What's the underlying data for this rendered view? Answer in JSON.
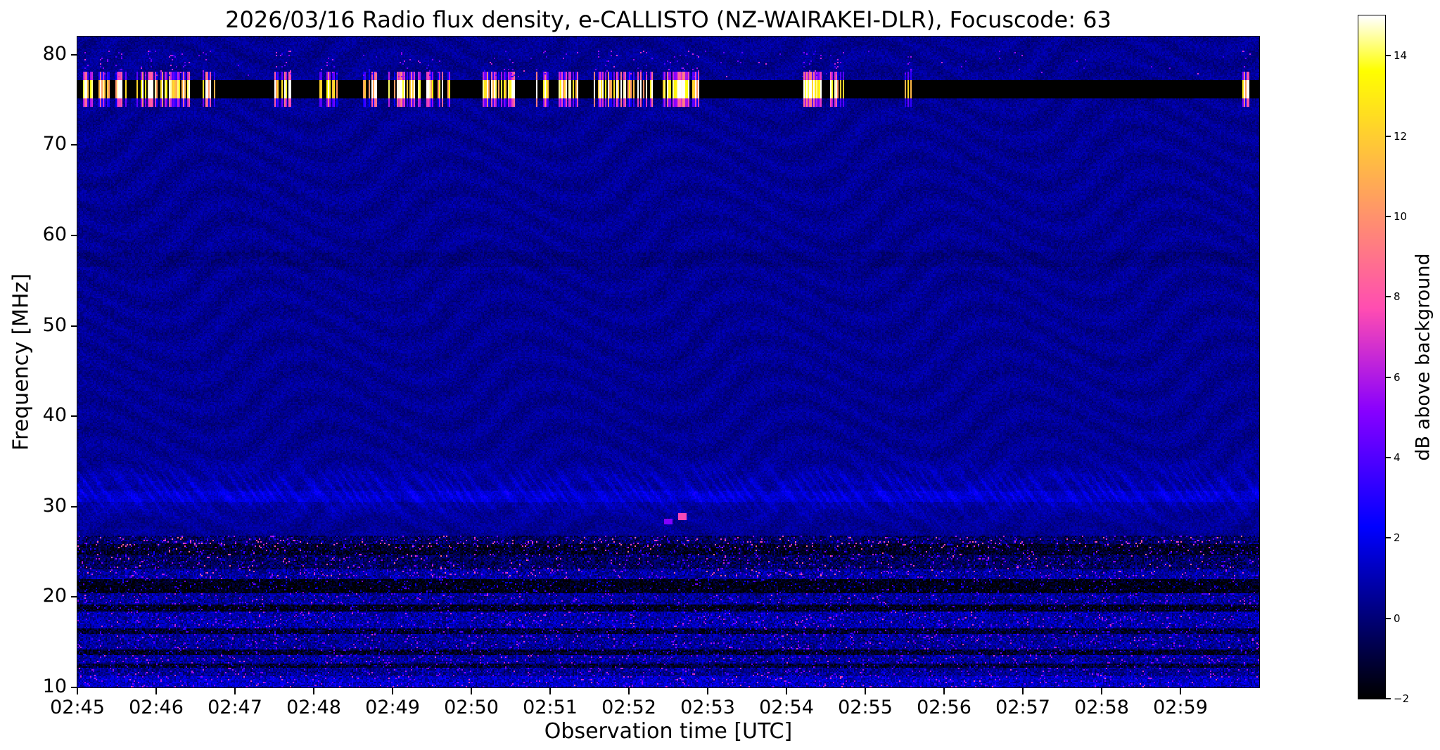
{
  "chart_data": {
    "type": "heatmap",
    "title": "2026/03/16  Radio flux density, e-CALLISTO (NZ-WAIRAKEI-DLR), Focuscode: 63",
    "xlabel": "Observation time [UTC]",
    "ylabel": "Frequency [MHz]",
    "colorbar_label": "dB above background",
    "colormap": "gnuplot2",
    "grid": false,
    "x_ticks": [
      "02:45",
      "02:46",
      "02:47",
      "02:48",
      "02:49",
      "02:50",
      "02:51",
      "02:52",
      "02:53",
      "02:54",
      "02:55",
      "02:56",
      "02:57",
      "02:58",
      "02:59"
    ],
    "x_range_minutes": [
      0,
      15
    ],
    "y_ticks": [
      10,
      20,
      30,
      40,
      50,
      60,
      70,
      80
    ],
    "ylim": [
      10,
      82
    ],
    "colorbar_ticks": [
      {
        "value": -2,
        "label": "−2"
      },
      {
        "value": 0,
        "label": "0"
      },
      {
        "value": 2,
        "label": "2"
      },
      {
        "value": 4,
        "label": "4"
      },
      {
        "value": 6,
        "label": "6"
      },
      {
        "value": 8,
        "label": "8"
      },
      {
        "value": 10,
        "label": "10"
      },
      {
        "value": 12,
        "label": "12"
      },
      {
        "value": 14,
        "label": "14"
      }
    ],
    "value_range_db": [
      -2,
      15
    ],
    "background_level_db": 0.45,
    "features": {
      "rfi_band": {
        "freq_range": [
          75.15,
          77.25
        ],
        "base_db": -2,
        "burst_db": [
          10,
          17.5
        ],
        "burst_probability": 0.65,
        "burst_clusters_min": [
          [
            0.07,
            0.2
          ],
          [
            0.25,
            0.62
          ],
          [
            0.72,
            1.02
          ],
          [
            1.05,
            1.45
          ],
          [
            1.55,
            1.75
          ],
          [
            2.5,
            2.72
          ],
          [
            3.05,
            3.35
          ],
          [
            3.62,
            3.8
          ],
          [
            3.95,
            4.35
          ],
          [
            4.42,
            4.75
          ],
          [
            5.15,
            5.55
          ],
          [
            5.83,
            6.0
          ],
          [
            6.1,
            6.35
          ],
          [
            6.55,
            7.3
          ],
          [
            7.35,
            7.9
          ],
          [
            9.2,
            9.45
          ],
          [
            9.55,
            9.75
          ],
          [
            10.5,
            10.6
          ],
          [
            14.78,
            14.92
          ]
        ]
      },
      "speckles_above_band": {
        "freq_range": [
          77.5,
          80.4
        ],
        "density": 0.004,
        "db": [
          3,
          7
        ]
      },
      "fringe_band": {
        "freq_range": [
          28,
          38
        ],
        "center": 31.8,
        "sigma": 2.6,
        "amplitude_db": 0.9
      },
      "bright_line": {
        "freq_range": [
          30.6,
          31.7
        ],
        "db_offset": 0.55
      },
      "dark_line": {
        "freq_range": [
          56.5,
          58.2
        ],
        "db_offset": -0.3
      },
      "noisy_low_band": {
        "freq_max": 26.8,
        "rows": [
          [
            10,
            11.3,
            1.0
          ],
          [
            11.3,
            12.1,
            0.1
          ],
          [
            12.1,
            12.6,
            -1.4
          ],
          [
            12.6,
            13.6,
            0.3
          ],
          [
            13.6,
            14.2,
            -1.7
          ],
          [
            14.2,
            15.9,
            0.2
          ],
          [
            15.9,
            16.6,
            -1.5
          ],
          [
            16.6,
            18.4,
            0.5
          ],
          [
            18.4,
            19.1,
            -1.9
          ],
          [
            19.1,
            20.4,
            0.2
          ],
          [
            20.4,
            21.9,
            -2.1
          ],
          [
            21.9,
            23.1,
            0.3
          ],
          [
            23.1,
            24.6,
            -0.8
          ],
          [
            24.6,
            25.8,
            -1.7
          ],
          [
            25.8,
            26.8,
            -0.7
          ]
        ],
        "speckle_density": 0.055,
        "speckle_db": [
          2.2,
          5.7
        ],
        "magenta_freq_range": [
          22.3,
          26.8
        ],
        "magenta_density": 0.014,
        "magenta_db": [
          6,
          9
        ],
        "magenta_row": [
          25.5,
          26.4
        ],
        "magenta_row_density": 0.035
      },
      "point_bursts": [
        {
          "time_min": 7.68,
          "freq_mhz": 28.9,
          "half_width_min": 0.06,
          "half_height_mhz": 0.45,
          "db": 7.5
        },
        {
          "time_min": 7.5,
          "freq_mhz": 28.3,
          "half_width_min": 0.05,
          "half_height_mhz": 0.3,
          "db": 5
        }
      ]
    }
  }
}
